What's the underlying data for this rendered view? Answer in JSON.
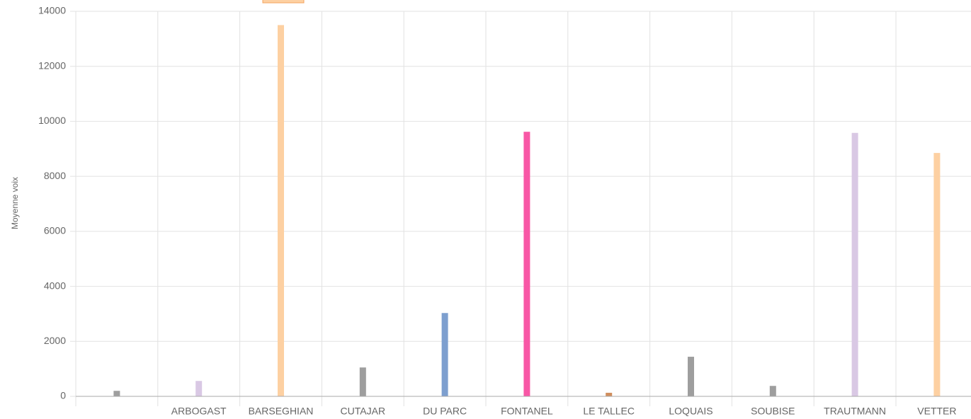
{
  "chart_data": {
    "type": "bar",
    "y_label": "Moyenne voix",
    "categories": [
      null,
      "ARBOGAST",
      "BARSEGHIAN",
      "CUTAJAR",
      "DU PARC",
      "FONTANEL",
      "LE TALLEC",
      "LOQUAIS",
      "SOUBISE",
      "TRAUTMANN",
      "VETTER"
    ],
    "values": [
      200,
      560,
      13500,
      1050,
      3030,
      9620,
      130,
      1440,
      380,
      9580,
      8850
    ],
    "colors": [
      "#9e9e9e",
      "#d9c8e4",
      "#fdd0a2",
      "#9e9e9e",
      "#7d9fcf",
      "#f857a6",
      "#d08e5e",
      "#9e9e9e",
      "#9e9e9e",
      "#d9c8e4",
      "#fdd0a2"
    ],
    "ylim": [
      0,
      14000
    ],
    "yticks": [
      0,
      2000,
      4000,
      6000,
      8000,
      10000,
      12000,
      14000
    ],
    "grid": true
  }
}
